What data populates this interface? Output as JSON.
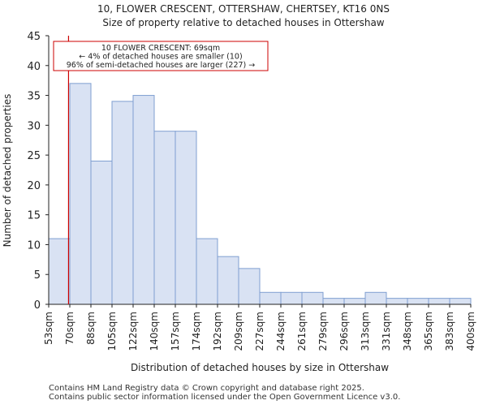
{
  "chart_data": {
    "type": "bar",
    "title": "10, FLOWER CRESCENT, OTTERSHAW, CHERTSEY, KT16 0NS",
    "subtitle": "Size of property relative to detached houses in Ottershaw",
    "xlabel": "Distribution of detached houses by size in Ottershaw",
    "ylabel": "Number of detached properties",
    "ylim": [
      0,
      45
    ],
    "yticks": [
      0,
      5,
      10,
      15,
      20,
      25,
      30,
      35,
      40,
      45
    ],
    "bin_edges": [
      "53sqm",
      "70sqm",
      "88sqm",
      "105sqm",
      "122sqm",
      "140sqm",
      "157sqm",
      "174sqm",
      "192sqm",
      "209sqm",
      "227sqm",
      "244sqm",
      "261sqm",
      "279sqm",
      "296sqm",
      "313sqm",
      "331sqm",
      "348sqm",
      "365sqm",
      "383sqm",
      "400sqm"
    ],
    "values": [
      11,
      37,
      24,
      34,
      35,
      29,
      29,
      11,
      8,
      6,
      2,
      2,
      2,
      1,
      1,
      2,
      1,
      1,
      1,
      1
    ],
    "bar_fill": "#d9e2f3",
    "bar_edge": "#7f9fd1",
    "marker": {
      "value": 69,
      "bin_position": 0.94,
      "color": "#cc0000"
    },
    "annotation": {
      "lines": [
        "10 FLOWER CRESCENT: 69sqm",
        "← 4% of detached houses are smaller (10)",
        "96% of semi-detached houses are larger (227) →"
      ]
    }
  },
  "footer": {
    "line1": "Contains HM Land Registry data © Crown copyright and database right 2025.",
    "line2": "Contains public sector information licensed under the Open Government Licence v3.0."
  }
}
